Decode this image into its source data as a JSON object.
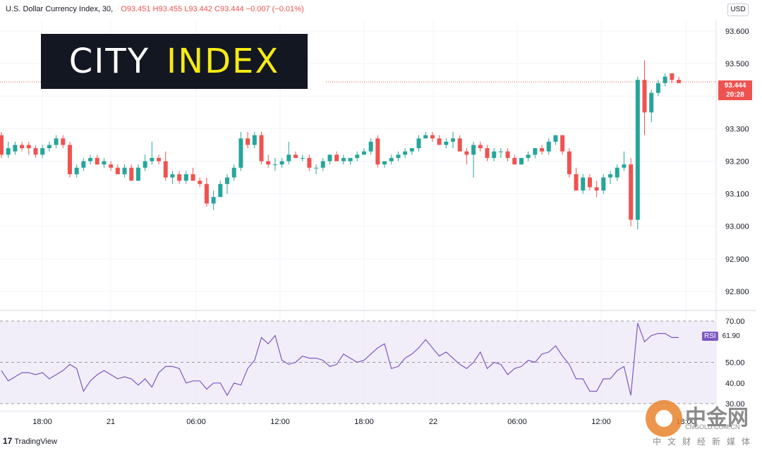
{
  "header": {
    "symbol": "U.S. Dollar Currency Index, 30,",
    "ohlc": "O93.451  H93.455  L93.442  C93.444  −0.007  (−0.01%)"
  },
  "currency_button": "USD",
  "logo": {
    "word1": "CITY",
    "word2": "INDEX"
  },
  "last_price": {
    "price": "93.444",
    "countdown": "20:28"
  },
  "rsi_badge": {
    "label": "RSI",
    "value": "61.90"
  },
  "footer": {
    "brand": "TradingView",
    "brand_mark": "17"
  },
  "watermark": {
    "name": "中金网",
    "url": "CNGOLD.COM.CN",
    "subtitle": "中文财经新媒体"
  },
  "colors": {
    "up": "#26a69a",
    "down": "#ef5350",
    "rsi_line": "#7e57c2",
    "rsi_band": "#ede7f6"
  },
  "chart_data": [
    {
      "type": "candlestick",
      "ylim": [
        92.8,
        93.65
      ],
      "y_ticks": [
        "93.600",
        "93.500",
        "93.400",
        "93.300",
        "93.200",
        "93.100",
        "93.000",
        "92.900",
        "92.800"
      ],
      "x_ticks": [
        "18:00",
        "21",
        "06:00",
        "12:00",
        "18:00",
        "22",
        "06:00",
        "12:00",
        "18:00"
      ],
      "last_price": 93.444,
      "candles": [
        [
          93.28,
          93.29,
          93.21,
          93.22
        ],
        [
          93.22,
          93.26,
          93.21,
          93.24
        ],
        [
          93.23,
          93.26,
          93.22,
          93.25
        ],
        [
          93.25,
          93.26,
          93.23,
          93.24
        ],
        [
          93.25,
          93.26,
          93.22,
          93.24
        ],
        [
          93.24,
          93.25,
          93.21,
          93.22
        ],
        [
          93.22,
          93.25,
          93.21,
          93.24
        ],
        [
          93.24,
          93.26,
          93.23,
          93.25
        ],
        [
          93.25,
          93.28,
          93.24,
          93.27
        ],
        [
          93.27,
          93.28,
          93.24,
          93.25
        ],
        [
          93.25,
          93.26,
          93.15,
          93.16
        ],
        [
          93.16,
          93.19,
          93.15,
          93.18
        ],
        [
          93.18,
          93.21,
          93.17,
          93.2
        ],
        [
          93.2,
          93.22,
          93.19,
          93.21
        ],
        [
          93.21,
          93.22,
          93.19,
          93.19
        ],
        [
          93.19,
          93.21,
          93.18,
          93.2
        ],
        [
          93.19,
          93.2,
          93.17,
          93.18
        ],
        [
          93.18,
          93.19,
          93.16,
          93.16
        ],
        [
          93.16,
          93.19,
          93.15,
          93.18
        ],
        [
          93.18,
          93.19,
          93.14,
          93.14
        ],
        [
          93.14,
          93.19,
          93.14,
          93.18
        ],
        [
          93.18,
          93.22,
          93.17,
          93.2
        ],
        [
          93.2,
          93.26,
          93.19,
          93.21
        ],
        [
          93.21,
          93.22,
          93.19,
          93.2
        ],
        [
          93.2,
          93.23,
          93.14,
          93.15
        ],
        [
          93.15,
          93.17,
          93.13,
          93.16
        ],
        [
          93.16,
          93.17,
          93.13,
          93.14
        ],
        [
          93.14,
          93.17,
          93.13,
          93.16
        ],
        [
          93.16,
          93.18,
          93.14,
          93.14
        ],
        [
          93.14,
          93.15,
          93.12,
          93.13
        ],
        [
          93.13,
          93.15,
          93.06,
          93.07
        ],
        [
          93.07,
          93.11,
          93.05,
          93.09
        ],
        [
          93.09,
          93.14,
          93.09,
          93.13
        ],
        [
          93.13,
          93.16,
          93.1,
          93.15
        ],
        [
          93.15,
          93.19,
          93.14,
          93.18
        ],
        [
          93.18,
          93.29,
          93.17,
          93.27
        ],
        [
          93.27,
          93.29,
          93.24,
          93.25
        ],
        [
          93.25,
          93.29,
          93.24,
          93.28
        ],
        [
          93.28,
          93.29,
          93.19,
          93.2
        ],
        [
          93.2,
          93.22,
          93.18,
          93.19
        ],
        [
          93.19,
          93.21,
          93.17,
          93.19
        ],
        [
          93.19,
          93.21,
          93.18,
          93.2
        ],
        [
          93.2,
          93.26,
          93.19,
          93.22
        ],
        [
          93.22,
          93.23,
          93.21,
          93.21
        ],
        [
          93.21,
          93.22,
          93.2,
          93.21
        ],
        [
          93.21,
          93.22,
          93.17,
          93.18
        ],
        [
          93.18,
          93.19,
          93.16,
          93.18
        ],
        [
          93.18,
          93.21,
          93.17,
          93.2
        ],
        [
          93.2,
          93.22,
          93.19,
          93.22
        ],
        [
          93.22,
          93.23,
          93.2,
          93.2
        ],
        [
          93.2,
          93.22,
          93.19,
          93.21
        ],
        [
          93.2,
          93.21,
          93.19,
          93.21
        ],
        [
          93.21,
          93.23,
          93.2,
          93.22
        ],
        [
          93.22,
          93.24,
          93.22,
          93.23
        ],
        [
          93.23,
          93.27,
          93.22,
          93.26
        ],
        [
          93.27,
          93.28,
          93.18,
          93.19
        ],
        [
          93.19,
          93.2,
          93.18,
          93.2
        ],
        [
          93.2,
          93.22,
          93.19,
          93.21
        ],
        [
          93.21,
          93.23,
          93.2,
          93.22
        ],
        [
          93.22,
          93.24,
          93.21,
          93.23
        ],
        [
          93.23,
          93.24,
          93.22,
          93.24
        ],
        [
          93.24,
          93.28,
          93.23,
          93.27
        ],
        [
          93.27,
          93.29,
          93.27,
          93.28
        ],
        [
          93.28,
          93.29,
          93.26,
          93.27
        ],
        [
          93.27,
          93.28,
          93.25,
          93.25
        ],
        [
          93.25,
          93.27,
          93.24,
          93.26
        ],
        [
          93.26,
          93.29,
          93.24,
          93.27
        ],
        [
          93.27,
          93.28,
          93.23,
          93.23
        ],
        [
          93.23,
          93.24,
          93.19,
          93.22
        ],
        [
          93.22,
          93.26,
          93.15,
          93.25
        ],
        [
          93.25,
          93.26,
          93.23,
          93.24
        ],
        [
          93.24,
          93.25,
          93.2,
          93.21
        ],
        [
          93.21,
          93.24,
          93.2,
          93.23
        ],
        [
          93.23,
          93.24,
          93.21,
          93.23
        ],
        [
          93.23,
          93.24,
          93.2,
          93.21
        ],
        [
          93.21,
          93.22,
          93.19,
          93.19
        ],
        [
          93.19,
          93.21,
          93.19,
          93.21
        ],
        [
          93.21,
          93.23,
          93.2,
          93.22
        ],
        [
          93.22,
          93.24,
          93.21,
          93.24
        ],
        [
          93.24,
          93.25,
          93.22,
          93.23
        ],
        [
          93.23,
          93.27,
          93.22,
          93.26
        ],
        [
          93.26,
          93.28,
          93.25,
          93.28
        ],
        [
          93.28,
          93.28,
          93.22,
          93.23
        ],
        [
          93.23,
          93.24,
          93.15,
          93.16
        ],
        [
          93.16,
          93.18,
          93.11,
          93.11
        ],
        [
          93.11,
          93.16,
          93.1,
          93.15
        ],
        [
          93.15,
          93.16,
          93.11,
          93.12
        ],
        [
          93.12,
          93.14,
          93.09,
          93.11
        ],
        [
          93.11,
          93.16,
          93.1,
          93.15
        ],
        [
          93.15,
          93.17,
          93.13,
          93.16
        ],
        [
          93.15,
          93.19,
          93.14,
          93.18
        ],
        [
          93.18,
          93.23,
          93.17,
          93.19
        ],
        [
          93.19,
          93.21,
          93.0,
          93.02
        ],
        [
          93.02,
          93.46,
          92.99,
          93.45
        ],
        [
          93.45,
          93.51,
          93.28,
          93.35
        ],
        [
          93.35,
          93.42,
          93.32,
          93.41
        ],
        [
          93.41,
          93.45,
          93.4,
          93.44
        ],
        [
          93.44,
          93.47,
          93.43,
          93.46
        ],
        [
          93.47,
          93.47,
          93.44,
          93.45
        ],
        [
          93.45,
          93.46,
          93.44,
          93.44
        ]
      ]
    },
    {
      "type": "line",
      "title": "RSI",
      "ylim": [
        28,
        72
      ],
      "y_ticks": [
        "70.00",
        "50.00",
        "40.00",
        "30.00"
      ],
      "reference_lines": [
        70,
        50,
        30
      ],
      "last_value": 61.9,
      "values": [
        46,
        41,
        43,
        45,
        45,
        44,
        45,
        42,
        44,
        46,
        49,
        47,
        36,
        41,
        44,
        46,
        44,
        42,
        43,
        42,
        39,
        42,
        38,
        45,
        48,
        48,
        47,
        40,
        41,
        41,
        37,
        40,
        40,
        34,
        40,
        39,
        47,
        51,
        62,
        59,
        63,
        51,
        49,
        50,
        53,
        52,
        52,
        51,
        48,
        49,
        54,
        52,
        50,
        51,
        54,
        57,
        59,
        47,
        48,
        52,
        54,
        57,
        61,
        57,
        53,
        55,
        52,
        49,
        47,
        50,
        55,
        47,
        50,
        49,
        44,
        47,
        48,
        51,
        50,
        54,
        55,
        58,
        53,
        49,
        42,
        42,
        36,
        36,
        42,
        42,
        46,
        48,
        34,
        69,
        60,
        63,
        64,
        64,
        62,
        62
      ]
    }
  ]
}
